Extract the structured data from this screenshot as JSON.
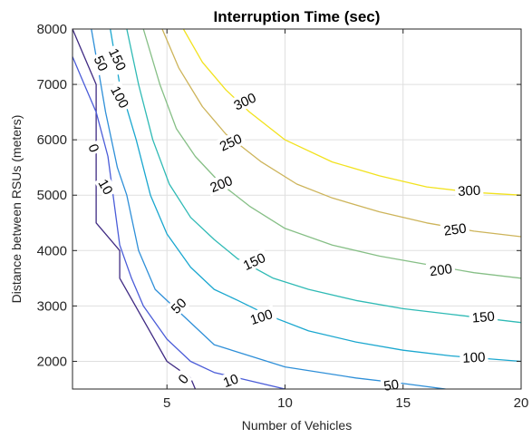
{
  "chart_data": {
    "type": "line",
    "title": "Interruption Time (sec)",
    "xlabel": "Number of Vehicles",
    "ylabel": "Distance between RSUs (meters)",
    "xlim": [
      1,
      20
    ],
    "ylim": [
      1500,
      8000
    ],
    "xticks": [
      5,
      10,
      15,
      20
    ],
    "yticks": [
      2000,
      3000,
      4000,
      5000,
      6000,
      7000,
      8000
    ],
    "grid": true,
    "box": true,
    "series": [
      {
        "name": "0",
        "color": "#3f2a83",
        "points": [
          [
            1.0,
            8000
          ],
          [
            1.5,
            7500
          ],
          [
            2.0,
            7000
          ],
          [
            2.0,
            4500
          ],
          [
            3.0,
            4000
          ],
          [
            3.0,
            3500
          ],
          [
            5.0,
            2000
          ],
          [
            6.0,
            1700
          ],
          [
            6.2,
            1500
          ]
        ],
        "labels": [
          {
            "text": "0",
            "x": 1.9,
            "y": 5850,
            "rot": 70
          },
          {
            "text": "0",
            "x": 5.7,
            "y": 1680,
            "rot": -50
          }
        ]
      },
      {
        "name": "10",
        "color": "#4a5cd8",
        "points": [
          [
            1.0,
            7500
          ],
          [
            1.5,
            7000
          ],
          [
            2.0,
            6500
          ],
          [
            2.5,
            5700
          ],
          [
            3.0,
            4100
          ],
          [
            3.5,
            3500
          ],
          [
            4.0,
            3000
          ],
          [
            5.0,
            2400
          ],
          [
            6.0,
            2000
          ],
          [
            7.0,
            1800
          ],
          [
            8.0,
            1700
          ],
          [
            9.0,
            1600
          ],
          [
            10.0,
            1500
          ]
        ],
        "labels": [
          {
            "text": "10",
            "x": 2.4,
            "y": 5150,
            "rot": 60
          },
          {
            "text": "10",
            "x": 7.7,
            "y": 1650,
            "rot": -20
          }
        ]
      },
      {
        "name": "50",
        "color": "#2e8fd8",
        "points": [
          [
            1.8,
            8000
          ],
          [
            2.0,
            7500
          ],
          [
            2.4,
            6500
          ],
          [
            2.9,
            5500
          ],
          [
            3.3,
            5000
          ],
          [
            3.8,
            4000
          ],
          [
            4.5,
            3300
          ],
          [
            5.5,
            2900
          ],
          [
            7.0,
            2300
          ],
          [
            10.0,
            1900
          ],
          [
            13.0,
            1700
          ],
          [
            15.0,
            1600
          ],
          [
            16.8,
            1500
          ]
        ],
        "labels": [
          {
            "text": "50",
            "x": 2.2,
            "y": 7380,
            "rot": 65
          },
          {
            "text": "50",
            "x": 5.5,
            "y": 3000,
            "rot": -45
          },
          {
            "text": "50",
            "x": 14.5,
            "y": 1570,
            "rot": -8
          }
        ]
      },
      {
        "name": "100",
        "color": "#1aa7cf",
        "points": [
          [
            2.6,
            8000
          ],
          [
            3.0,
            7000
          ],
          [
            3.7,
            6000
          ],
          [
            4.3,
            5000
          ],
          [
            5.0,
            4300
          ],
          [
            6.0,
            3700
          ],
          [
            7.0,
            3300
          ],
          [
            8.0,
            3100
          ],
          [
            9.3,
            2830
          ],
          [
            11.0,
            2550
          ],
          [
            13.0,
            2350
          ],
          [
            15.0,
            2200
          ],
          [
            17.0,
            2100
          ],
          [
            20.0,
            2000
          ]
        ],
        "labels": [
          {
            "text": "100",
            "x": 3.0,
            "y": 6770,
            "rot": 62
          },
          {
            "text": "100",
            "x": 9.0,
            "y": 2800,
            "rot": -18
          },
          {
            "text": "100",
            "x": 18.0,
            "y": 2070,
            "rot": -3
          }
        ]
      },
      {
        "name": "150",
        "color": "#2fbab5",
        "points": [
          [
            3.3,
            8000
          ],
          [
            3.8,
            7000
          ],
          [
            4.4,
            6000
          ],
          [
            5.1,
            5200
          ],
          [
            6.0,
            4600
          ],
          [
            7.0,
            4200
          ],
          [
            8.0,
            3850
          ],
          [
            9.5,
            3500
          ],
          [
            11.0,
            3300
          ],
          [
            13.0,
            3100
          ],
          [
            15.0,
            2950
          ],
          [
            17.0,
            2850
          ],
          [
            20.0,
            2700
          ]
        ],
        "labels": [
          {
            "text": "150",
            "x": 2.9,
            "y": 7450,
            "rot": 65
          },
          {
            "text": "150",
            "x": 8.7,
            "y": 3800,
            "rot": -25
          },
          {
            "text": "150",
            "x": 18.4,
            "y": 2800,
            "rot": -5
          }
        ]
      },
      {
        "name": "200",
        "color": "#86bf86",
        "points": [
          [
            4.0,
            8000
          ],
          [
            4.7,
            7000
          ],
          [
            5.4,
            6200
          ],
          [
            6.2,
            5700
          ],
          [
            7.3,
            5200
          ],
          [
            8.5,
            4800
          ],
          [
            10.0,
            4400
          ],
          [
            12.0,
            4100
          ],
          [
            14.0,
            3900
          ],
          [
            16.0,
            3750
          ],
          [
            18.0,
            3600
          ],
          [
            20.0,
            3500
          ]
        ],
        "labels": [
          {
            "text": "200",
            "x": 7.3,
            "y": 5200,
            "rot": -22
          },
          {
            "text": "200",
            "x": 16.6,
            "y": 3650,
            "rot": -8
          }
        ]
      },
      {
        "name": "250",
        "color": "#cdb45a",
        "points": [
          [
            4.8,
            8000
          ],
          [
            5.5,
            7300
          ],
          [
            6.5,
            6600
          ],
          [
            7.5,
            6100
          ],
          [
            9.0,
            5600
          ],
          [
            10.5,
            5200
          ],
          [
            12.0,
            4950
          ],
          [
            14.0,
            4700
          ],
          [
            16.0,
            4500
          ],
          [
            18.0,
            4350
          ],
          [
            20.0,
            4250
          ]
        ],
        "labels": [
          {
            "text": "250",
            "x": 7.7,
            "y": 5950,
            "rot": -25
          },
          {
            "text": "250",
            "x": 17.2,
            "y": 4380,
            "rot": -8
          }
        ]
      },
      {
        "name": "300",
        "color": "#f2e21e",
        "points": [
          [
            5.7,
            8000
          ],
          [
            6.5,
            7400
          ],
          [
            7.5,
            6900
          ],
          [
            8.5,
            6500
          ],
          [
            10.0,
            6000
          ],
          [
            12.0,
            5600
          ],
          [
            14.0,
            5350
          ],
          [
            16.0,
            5150
          ],
          [
            18.0,
            5050
          ],
          [
            20.0,
            5000
          ]
        ],
        "labels": [
          {
            "text": "300",
            "x": 8.3,
            "y": 6690,
            "rot": -25
          },
          {
            "text": "300",
            "x": 17.8,
            "y": 5080,
            "rot": -3
          }
        ]
      }
    ]
  }
}
